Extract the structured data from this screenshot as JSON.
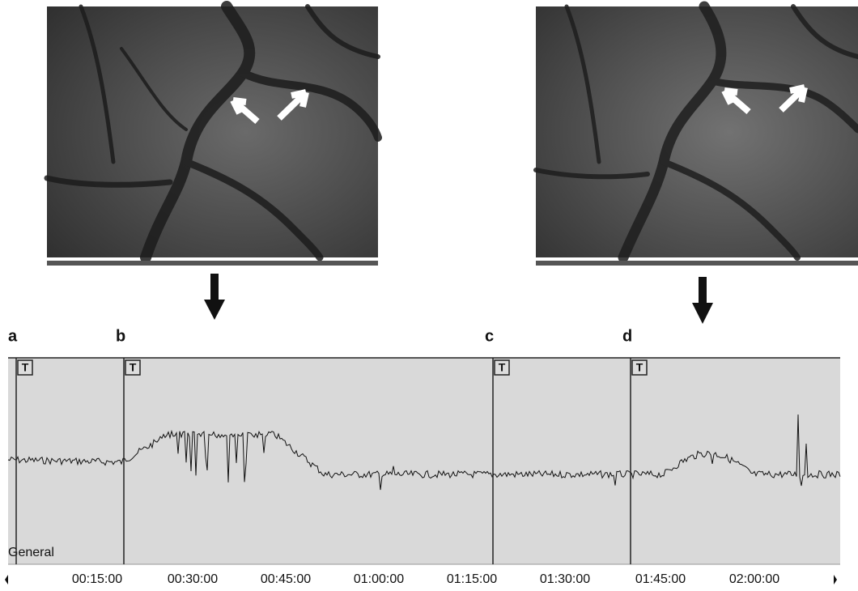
{
  "markers": [
    {
      "label": "a",
      "tag": "T"
    },
    {
      "label": "b",
      "tag": "T"
    },
    {
      "label": "c",
      "tag": "T"
    },
    {
      "label": "d",
      "tag": "T"
    }
  ],
  "track_name": "General",
  "time_labels": [
    "00:15:00",
    "00:30:00",
    "00:45:00",
    "01:00:00",
    "01:15:00",
    "01:30:00",
    "01:45:00",
    "02:00:00"
  ]
}
